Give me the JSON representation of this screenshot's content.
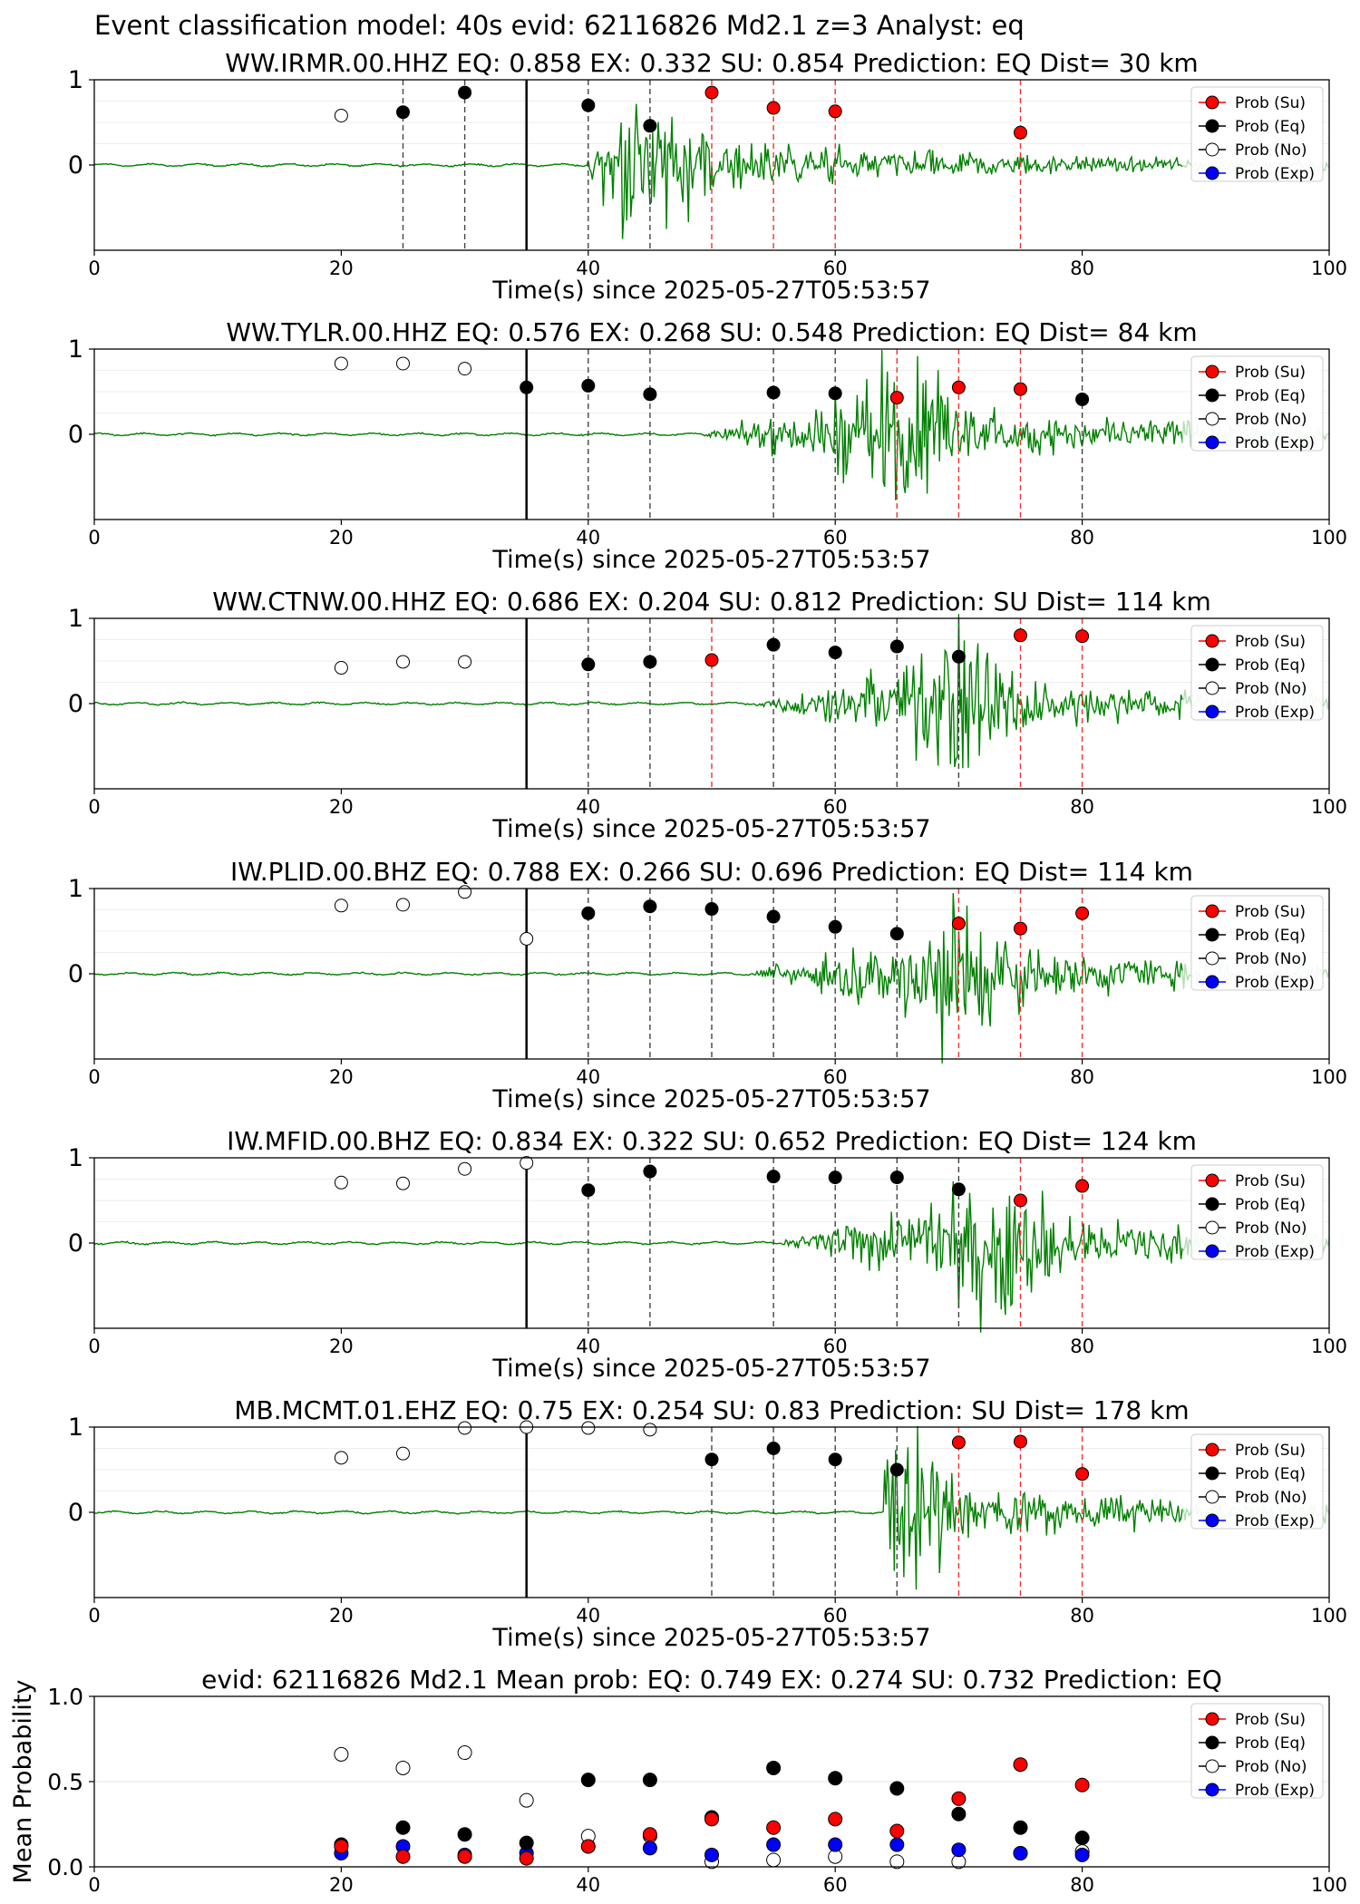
{
  "suptitle": "Event classification model: 40s evid: 62116826 Md2.1 z=3 Analyst: eq",
  "colors": {
    "su": "#ff0000",
    "eq": "#000000",
    "no": "#ffffff",
    "exp": "#0000ff",
    "trace": "#008000",
    "trace_faded": "#b4dcb4"
  },
  "legend": [
    "Prob (Su)",
    "Prob (Eq)",
    "Prob (No)",
    "Prob (Exp)"
  ],
  "chart_data": [
    {
      "type": "scatter",
      "title": "WW.IRMR.00.HHZ   EQ: 0.858  EX: 0.332  SU: 0.854   Prediction: EQ    Dist= 30 km",
      "xlabel": "Time(s) since 2025-05-27T05:53:57",
      "xlim": [
        0,
        100
      ],
      "ylim": [
        -1,
        1
      ],
      "xticks": [
        "0",
        "20",
        "40",
        "60",
        "80",
        "100"
      ],
      "yticks": [
        "1",
        "0"
      ],
      "event_line_x": 35,
      "onset_x": 40,
      "event_peak_x": 45,
      "vlines": [
        {
          "x": 25,
          "c": "eq"
        },
        {
          "x": 30,
          "c": "eq"
        },
        {
          "x": 40,
          "c": "eq"
        },
        {
          "x": 45,
          "c": "eq"
        },
        {
          "x": 50,
          "c": "su"
        },
        {
          "x": 55,
          "c": "su"
        },
        {
          "x": 60,
          "c": "su"
        },
        {
          "x": 75,
          "c": "su"
        }
      ],
      "points": [
        {
          "x": 20,
          "y": 0.58,
          "c": "no"
        },
        {
          "x": 25,
          "y": 0.62,
          "c": "eq"
        },
        {
          "x": 30,
          "y": 0.85,
          "c": "eq"
        },
        {
          "x": 40,
          "y": 0.7,
          "c": "eq"
        },
        {
          "x": 45,
          "y": 0.46,
          "c": "eq"
        },
        {
          "x": 50,
          "y": 0.85,
          "c": "su"
        },
        {
          "x": 55,
          "y": 0.67,
          "c": "su"
        },
        {
          "x": 60,
          "y": 0.63,
          "c": "su"
        },
        {
          "x": 75,
          "y": 0.38,
          "c": "su"
        }
      ],
      "legend_loc": "upper right"
    },
    {
      "type": "scatter",
      "title": "WW.TYLR.00.HHZ   EQ: 0.576  EX: 0.268  SU: 0.548   Prediction: EQ    Dist= 84 km",
      "xlabel": "Time(s) since 2025-05-27T05:53:57",
      "xlim": [
        0,
        100
      ],
      "ylim": [
        -1,
        1
      ],
      "xticks": [
        "0",
        "20",
        "40",
        "60",
        "80",
        "100"
      ],
      "yticks": [
        "1",
        "0"
      ],
      "event_line_x": 35,
      "onset_x": 49,
      "event_peak_x": 65,
      "vlines": [
        {
          "x": 40,
          "c": "eq"
        },
        {
          "x": 45,
          "c": "eq"
        },
        {
          "x": 55,
          "c": "eq"
        },
        {
          "x": 60,
          "c": "eq"
        },
        {
          "x": 65,
          "c": "su"
        },
        {
          "x": 70,
          "c": "su"
        },
        {
          "x": 75,
          "c": "su"
        },
        {
          "x": 80,
          "c": "eq"
        }
      ],
      "points": [
        {
          "x": 20,
          "y": 0.83,
          "c": "no"
        },
        {
          "x": 25,
          "y": 0.83,
          "c": "no"
        },
        {
          "x": 30,
          "y": 0.77,
          "c": "no"
        },
        {
          "x": 35,
          "y": 0.55,
          "c": "eq"
        },
        {
          "x": 40,
          "y": 0.57,
          "c": "eq"
        },
        {
          "x": 45,
          "y": 0.47,
          "c": "eq"
        },
        {
          "x": 55,
          "y": 0.49,
          "c": "eq"
        },
        {
          "x": 60,
          "y": 0.48,
          "c": "eq"
        },
        {
          "x": 65,
          "y": 0.43,
          "c": "su"
        },
        {
          "x": 70,
          "y": 0.55,
          "c": "su"
        },
        {
          "x": 75,
          "y": 0.53,
          "c": "su"
        },
        {
          "x": 80,
          "y": 0.41,
          "c": "eq"
        }
      ],
      "legend_loc": "upper right"
    },
    {
      "type": "scatter",
      "title": "WW.CTNW.00.HHZ   EQ: 0.686  EX: 0.204  SU: 0.812   Prediction: SU    Dist= 114 km",
      "xlabel": "Time(s) since 2025-05-27T05:53:57",
      "xlim": [
        0,
        100
      ],
      "ylim": [
        -1,
        1
      ],
      "xticks": [
        "0",
        "20",
        "40",
        "60",
        "80",
        "100"
      ],
      "yticks": [
        "1",
        "0"
      ],
      "event_line_x": 35,
      "onset_x": 53,
      "event_peak_x": 70,
      "vlines": [
        {
          "x": 40,
          "c": "eq"
        },
        {
          "x": 45,
          "c": "eq"
        },
        {
          "x": 50,
          "c": "su"
        },
        {
          "x": 55,
          "c": "eq"
        },
        {
          "x": 60,
          "c": "eq"
        },
        {
          "x": 65,
          "c": "eq"
        },
        {
          "x": 70,
          "c": "eq"
        },
        {
          "x": 75,
          "c": "su"
        },
        {
          "x": 80,
          "c": "su"
        }
      ],
      "points": [
        {
          "x": 20,
          "y": 0.42,
          "c": "no"
        },
        {
          "x": 25,
          "y": 0.49,
          "c": "no"
        },
        {
          "x": 30,
          "y": 0.49,
          "c": "no"
        },
        {
          "x": 40,
          "y": 0.46,
          "c": "eq"
        },
        {
          "x": 45,
          "y": 0.49,
          "c": "eq"
        },
        {
          "x": 50,
          "y": 0.51,
          "c": "su"
        },
        {
          "x": 55,
          "y": 0.69,
          "c": "eq"
        },
        {
          "x": 60,
          "y": 0.6,
          "c": "eq"
        },
        {
          "x": 65,
          "y": 0.67,
          "c": "eq"
        },
        {
          "x": 70,
          "y": 0.55,
          "c": "eq"
        },
        {
          "x": 75,
          "y": 0.8,
          "c": "su"
        },
        {
          "x": 80,
          "y": 0.79,
          "c": "su"
        }
      ],
      "legend_loc": "upper right"
    },
    {
      "type": "scatter",
      "title": "IW.PLID.00.BHZ   EQ: 0.788  EX: 0.266  SU: 0.696   Prediction: EQ    Dist= 114 km",
      "xlabel": "Time(s) since 2025-05-27T05:53:57",
      "xlim": [
        0,
        100
      ],
      "ylim": [
        -1,
        1
      ],
      "xticks": [
        "0",
        "20",
        "40",
        "60",
        "80",
        "100"
      ],
      "yticks": [
        "1",
        "0"
      ],
      "event_line_x": 35,
      "onset_x": 53,
      "event_peak_x": 70,
      "vlines": [
        {
          "x": 40,
          "c": "eq"
        },
        {
          "x": 45,
          "c": "eq"
        },
        {
          "x": 50,
          "c": "eq"
        },
        {
          "x": 55,
          "c": "eq"
        },
        {
          "x": 60,
          "c": "eq"
        },
        {
          "x": 65,
          "c": "eq"
        },
        {
          "x": 70,
          "c": "su"
        },
        {
          "x": 75,
          "c": "su"
        },
        {
          "x": 80,
          "c": "su"
        }
      ],
      "points": [
        {
          "x": 20,
          "y": 0.8,
          "c": "no"
        },
        {
          "x": 25,
          "y": 0.81,
          "c": "no"
        },
        {
          "x": 30,
          "y": 0.96,
          "c": "no"
        },
        {
          "x": 35,
          "y": 0.41,
          "c": "no"
        },
        {
          "x": 40,
          "y": 0.71,
          "c": "eq"
        },
        {
          "x": 45,
          "y": 0.79,
          "c": "eq"
        },
        {
          "x": 50,
          "y": 0.76,
          "c": "eq"
        },
        {
          "x": 55,
          "y": 0.67,
          "c": "eq"
        },
        {
          "x": 60,
          "y": 0.55,
          "c": "eq"
        },
        {
          "x": 65,
          "y": 0.47,
          "c": "eq"
        },
        {
          "x": 70,
          "y": 0.59,
          "c": "su"
        },
        {
          "x": 75,
          "y": 0.53,
          "c": "su"
        },
        {
          "x": 80,
          "y": 0.71,
          "c": "su"
        }
      ],
      "legend_loc": "upper right"
    },
    {
      "type": "scatter",
      "title": "IW.MFID.00.BHZ   EQ: 0.834  EX: 0.322  SU: 0.652   Prediction: EQ    Dist= 124 km",
      "xlabel": "Time(s) since 2025-05-27T05:53:57",
      "xlim": [
        0,
        100
      ],
      "ylim": [
        -1,
        1
      ],
      "xticks": [
        "0",
        "20",
        "40",
        "60",
        "80",
        "100"
      ],
      "yticks": [
        "1",
        "0"
      ],
      "event_line_x": 35,
      "onset_x": 55,
      "event_peak_x": 73,
      "vlines": [
        {
          "x": 40,
          "c": "eq"
        },
        {
          "x": 45,
          "c": "eq"
        },
        {
          "x": 55,
          "c": "eq"
        },
        {
          "x": 60,
          "c": "eq"
        },
        {
          "x": 65,
          "c": "eq"
        },
        {
          "x": 70,
          "c": "eq"
        },
        {
          "x": 75,
          "c": "su"
        },
        {
          "x": 80,
          "c": "su"
        }
      ],
      "points": [
        {
          "x": 20,
          "y": 0.71,
          "c": "no"
        },
        {
          "x": 25,
          "y": 0.7,
          "c": "no"
        },
        {
          "x": 30,
          "y": 0.87,
          "c": "no"
        },
        {
          "x": 35,
          "y": 0.94,
          "c": "no"
        },
        {
          "x": 40,
          "y": 0.62,
          "c": "eq"
        },
        {
          "x": 45,
          "y": 0.84,
          "c": "eq"
        },
        {
          "x": 55,
          "y": 0.78,
          "c": "eq"
        },
        {
          "x": 60,
          "y": 0.77,
          "c": "eq"
        },
        {
          "x": 65,
          "y": 0.77,
          "c": "eq"
        },
        {
          "x": 70,
          "y": 0.63,
          "c": "eq"
        },
        {
          "x": 75,
          "y": 0.5,
          "c": "su"
        },
        {
          "x": 80,
          "y": 0.67,
          "c": "su"
        }
      ],
      "legend_loc": "upper right"
    },
    {
      "type": "scatter",
      "title": "MB.MCMT.01.EHZ   EQ: 0.75  EX: 0.254  SU: 0.83   Prediction: SU    Dist= 178 km",
      "xlabel": "Time(s) since 2025-05-27T05:53:57",
      "xlim": [
        0,
        100
      ],
      "ylim": [
        -1,
        1
      ],
      "xticks": [
        "0",
        "20",
        "40",
        "60",
        "80",
        "100"
      ],
      "yticks": [
        "1",
        "0"
      ],
      "event_line_x": 35,
      "onset_x": 64,
      "event_peak_x": 65,
      "vlines": [
        {
          "x": 50,
          "c": "eq"
        },
        {
          "x": 55,
          "c": "eq"
        },
        {
          "x": 60,
          "c": "eq"
        },
        {
          "x": 65,
          "c": "eq"
        },
        {
          "x": 70,
          "c": "su"
        },
        {
          "x": 75,
          "c": "su"
        },
        {
          "x": 80,
          "c": "su"
        }
      ],
      "points": [
        {
          "x": 20,
          "y": 0.64,
          "c": "no"
        },
        {
          "x": 25,
          "y": 0.69,
          "c": "no"
        },
        {
          "x": 30,
          "y": 0.99,
          "c": "no"
        },
        {
          "x": 35,
          "y": 1.0,
          "c": "no"
        },
        {
          "x": 40,
          "y": 0.99,
          "c": "no"
        },
        {
          "x": 45,
          "y": 0.97,
          "c": "no"
        },
        {
          "x": 50,
          "y": 0.62,
          "c": "eq"
        },
        {
          "x": 55,
          "y": 0.75,
          "c": "eq"
        },
        {
          "x": 60,
          "y": 0.62,
          "c": "eq"
        },
        {
          "x": 65,
          "y": 0.5,
          "c": "eq"
        },
        {
          "x": 70,
          "y": 0.82,
          "c": "su"
        },
        {
          "x": 75,
          "y": 0.83,
          "c": "su"
        },
        {
          "x": 80,
          "y": 0.45,
          "c": "su"
        }
      ],
      "legend_loc": "upper right"
    },
    {
      "type": "scatter",
      "title": "evid: 62116826  Md2.1   Mean prob:   EQ: 0.749  EX: 0.274  SU: 0.732   Prediction: EQ",
      "xlabel": "",
      "ylabel": "Mean Probability",
      "xlim": [
        0,
        100
      ],
      "ylim": [
        0,
        1
      ],
      "xticks": [
        "0",
        "20",
        "40",
        "60",
        "80",
        "100"
      ],
      "yticks": [
        "1.0",
        "0.5",
        "0.0"
      ],
      "series": [
        {
          "name": "Prob (Su)",
          "c": "su",
          "x": [
            20,
            25,
            30,
            35,
            40,
            45,
            50,
            55,
            60,
            65,
            70,
            75,
            80
          ],
          "values": [
            0.12,
            0.06,
            0.06,
            0.05,
            0.12,
            0.19,
            0.28,
            0.23,
            0.28,
            0.21,
            0.4,
            0.6,
            0.48
          ]
        },
        {
          "name": "Prob (Eq)",
          "c": "eq",
          "x": [
            20,
            25,
            30,
            35,
            40,
            45,
            50,
            55,
            60,
            65,
            70,
            75,
            80
          ],
          "values": [
            0.13,
            0.23,
            0.19,
            0.14,
            0.51,
            0.51,
            0.29,
            0.58,
            0.52,
            0.46,
            0.31,
            0.23,
            0.17
          ]
        },
        {
          "name": "Prob (No)",
          "c": "no",
          "x": [
            20,
            25,
            30,
            35,
            40,
            45,
            50,
            55,
            60,
            65,
            70,
            75,
            80
          ],
          "values": [
            0.66,
            0.58,
            0.67,
            0.39,
            0.18,
            0.18,
            0.03,
            0.04,
            0.06,
            0.03,
            0.03,
            0.08,
            0.09
          ]
        },
        {
          "name": "Prob (Exp)",
          "c": "exp",
          "x": [
            20,
            25,
            30,
            35,
            40,
            45,
            50,
            55,
            60,
            65,
            70,
            75,
            80
          ],
          "values": [
            0.08,
            0.12,
            0.07,
            0.08,
            0.12,
            0.11,
            0.07,
            0.13,
            0.13,
            0.13,
            0.1,
            0.08,
            0.07
          ]
        }
      ],
      "legend_loc": "upper right"
    }
  ]
}
